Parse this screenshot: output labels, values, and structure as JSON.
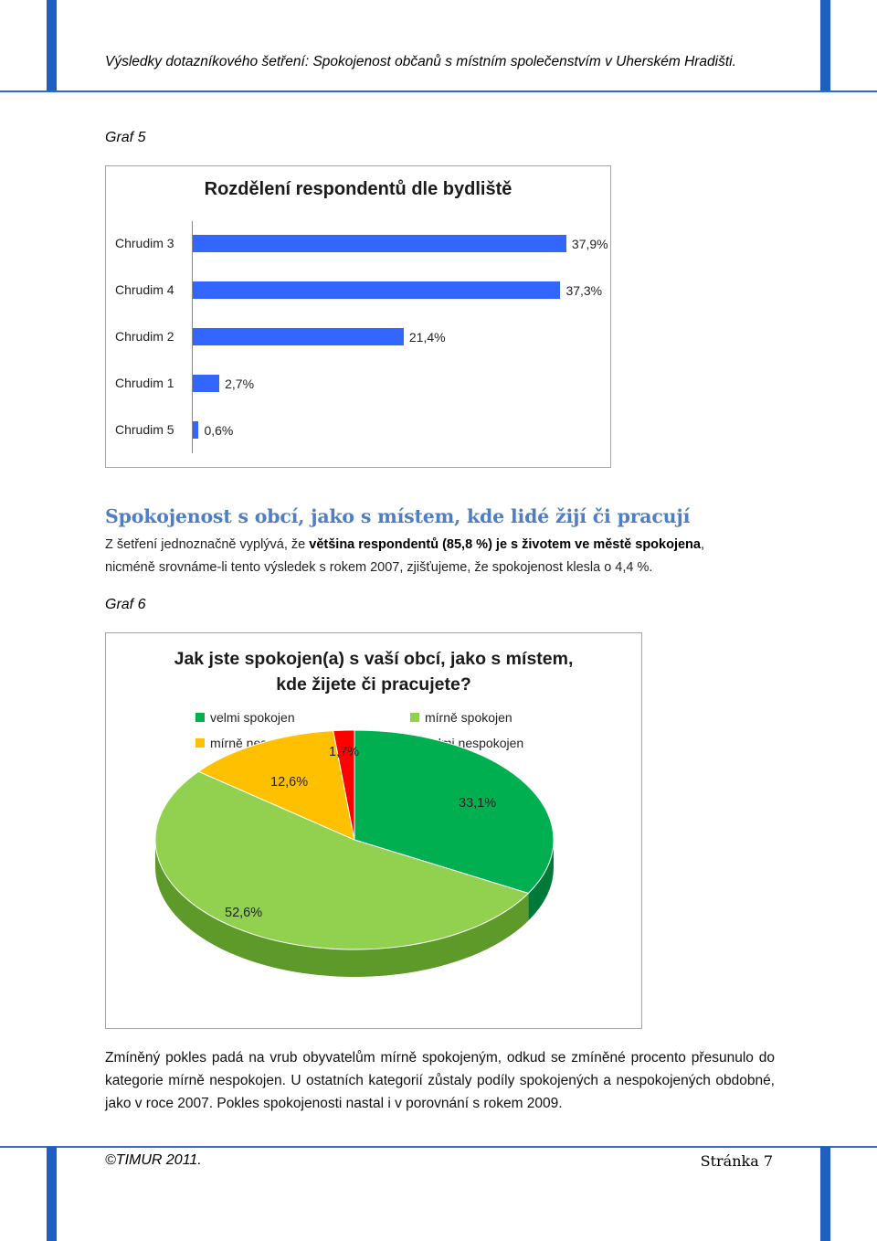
{
  "header": {
    "title": "Výsledky dotazníkového šetření: Spokojenost občanů s místním společenstvím v Uherském Hradišti."
  },
  "graf5_caption": "Graf 5",
  "chart1": {
    "chart_data": {
      "type": "bar",
      "orientation": "horizontal",
      "title": "Rozdělení respondentů dle bydliště",
      "categories": [
        "Chrudim 3",
        "Chrudim 4",
        "Chrudim 2",
        "Chrudim 1",
        "Chrudim 5"
      ],
      "values": [
        37.9,
        37.3,
        21.4,
        2.7,
        0.6
      ],
      "labels": [
        "37,9%",
        "37,3%",
        "21,4%",
        "2,7%",
        "0,6%"
      ],
      "color": "#3366ff"
    }
  },
  "section": {
    "heading": "Spokojenost s obcí, jako s místem, kde lidé žijí či pracují",
    "p1a": "Z šetření jednoznačně vyplývá, že ",
    "p1b": "většina respondentů (85,8 %) je s životem ve městě spokojena",
    "p1c": ",",
    "p2": "nicméně srovnáme-li tento výsledek s rokem 2007, zjišťujeme, že spokojenost klesla o 4,4 %."
  },
  "graf6_caption": "Graf 6",
  "chart2": {
    "chart_data": {
      "type": "pie",
      "title_line1": "Jak jste spokojen(a) s vaší obcí, jako s místem,",
      "title_line2": "kde žijete či pracujete?",
      "legend": [
        "velmi spokojen",
        "mírně spokojen",
        "mírně nespokojen",
        "velmi nespokojen"
      ],
      "values": [
        33.1,
        52.6,
        12.6,
        1.7
      ],
      "labels": [
        "33,1%",
        "52,6%",
        "12,6%",
        "1,7%"
      ],
      "colors": [
        "#00b050",
        "#92d050",
        "#ffc000",
        "#ff0000"
      ]
    }
  },
  "body": {
    "text": "Zmíněný pokles padá na vrub obyvatelům mírně spokojeným, odkud se zmíněné procento přesunulo do kategorie mírně nespokojen. U ostatních kategorií zůstaly podíly spokojených a nespokojených obdobné, jako v roce 2007. Pokles spokojenosti nastal i v porovnání s rokem 2009."
  },
  "footer": {
    "left": "©TIMUR 2011.",
    "right": "Stránka 7"
  }
}
